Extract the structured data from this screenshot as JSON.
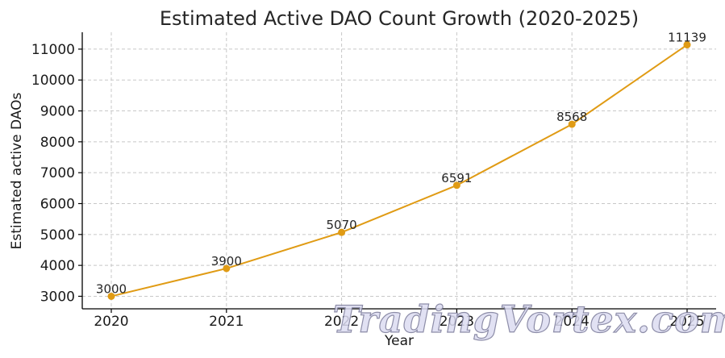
{
  "chart_data": {
    "type": "line",
    "title": "Estimated Active DAO Count Growth (2020-2025)",
    "xlabel": "Year",
    "ylabel": "Estimated active DAOs",
    "x": [
      "2020",
      "2021",
      "2022",
      "2023",
      "2024",
      "2025"
    ],
    "series": [
      {
        "values": [
          3000,
          3900,
          5070,
          6591,
          8568,
          11139
        ]
      }
    ],
    "data_labels": [
      "3000",
      "3900",
      "5070",
      "6591",
      "8568",
      "11139"
    ],
    "yticks": [
      3000,
      4000,
      5000,
      6000,
      7000,
      8000,
      9000,
      10000,
      11000
    ],
    "ylim": [
      2594,
      11546
    ],
    "grid": true,
    "line_color": "#e09b14",
    "watermark": "TradingVortex.com"
  }
}
